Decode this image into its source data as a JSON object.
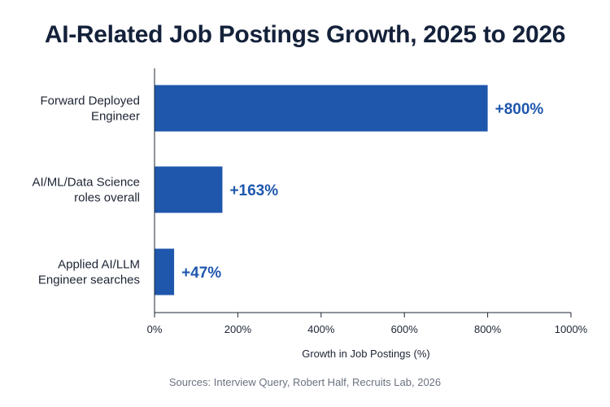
{
  "chart_data": {
    "type": "bar",
    "orientation": "horizontal",
    "title": "AI-Related Job Postings Growth, 2025 to 2026",
    "categories": [
      [
        "Forward Deployed",
        "Engineer"
      ],
      [
        "AI/ML/Data Science",
        "roles overall"
      ],
      [
        "Applied AI/LLM",
        "Engineer searches"
      ]
    ],
    "values": [
      800,
      163,
      47
    ],
    "value_labels": [
      "+800%",
      "+163%",
      "+47%"
    ],
    "xlabel": "Growth in Job Postings (%)",
    "ylabel": "",
    "xlim": [
      0,
      1000
    ],
    "x_ticks": [
      0,
      200,
      400,
      600,
      800,
      1000
    ],
    "x_tick_labels": [
      "0%",
      "200%",
      "400%",
      "600%",
      "800%",
      "1000%"
    ],
    "grid": false,
    "bar_color": "#1f57ad",
    "label_color": "#1f57ad"
  },
  "source": "Sources: Interview Query, Robert Half, Recruits Lab, 2026"
}
